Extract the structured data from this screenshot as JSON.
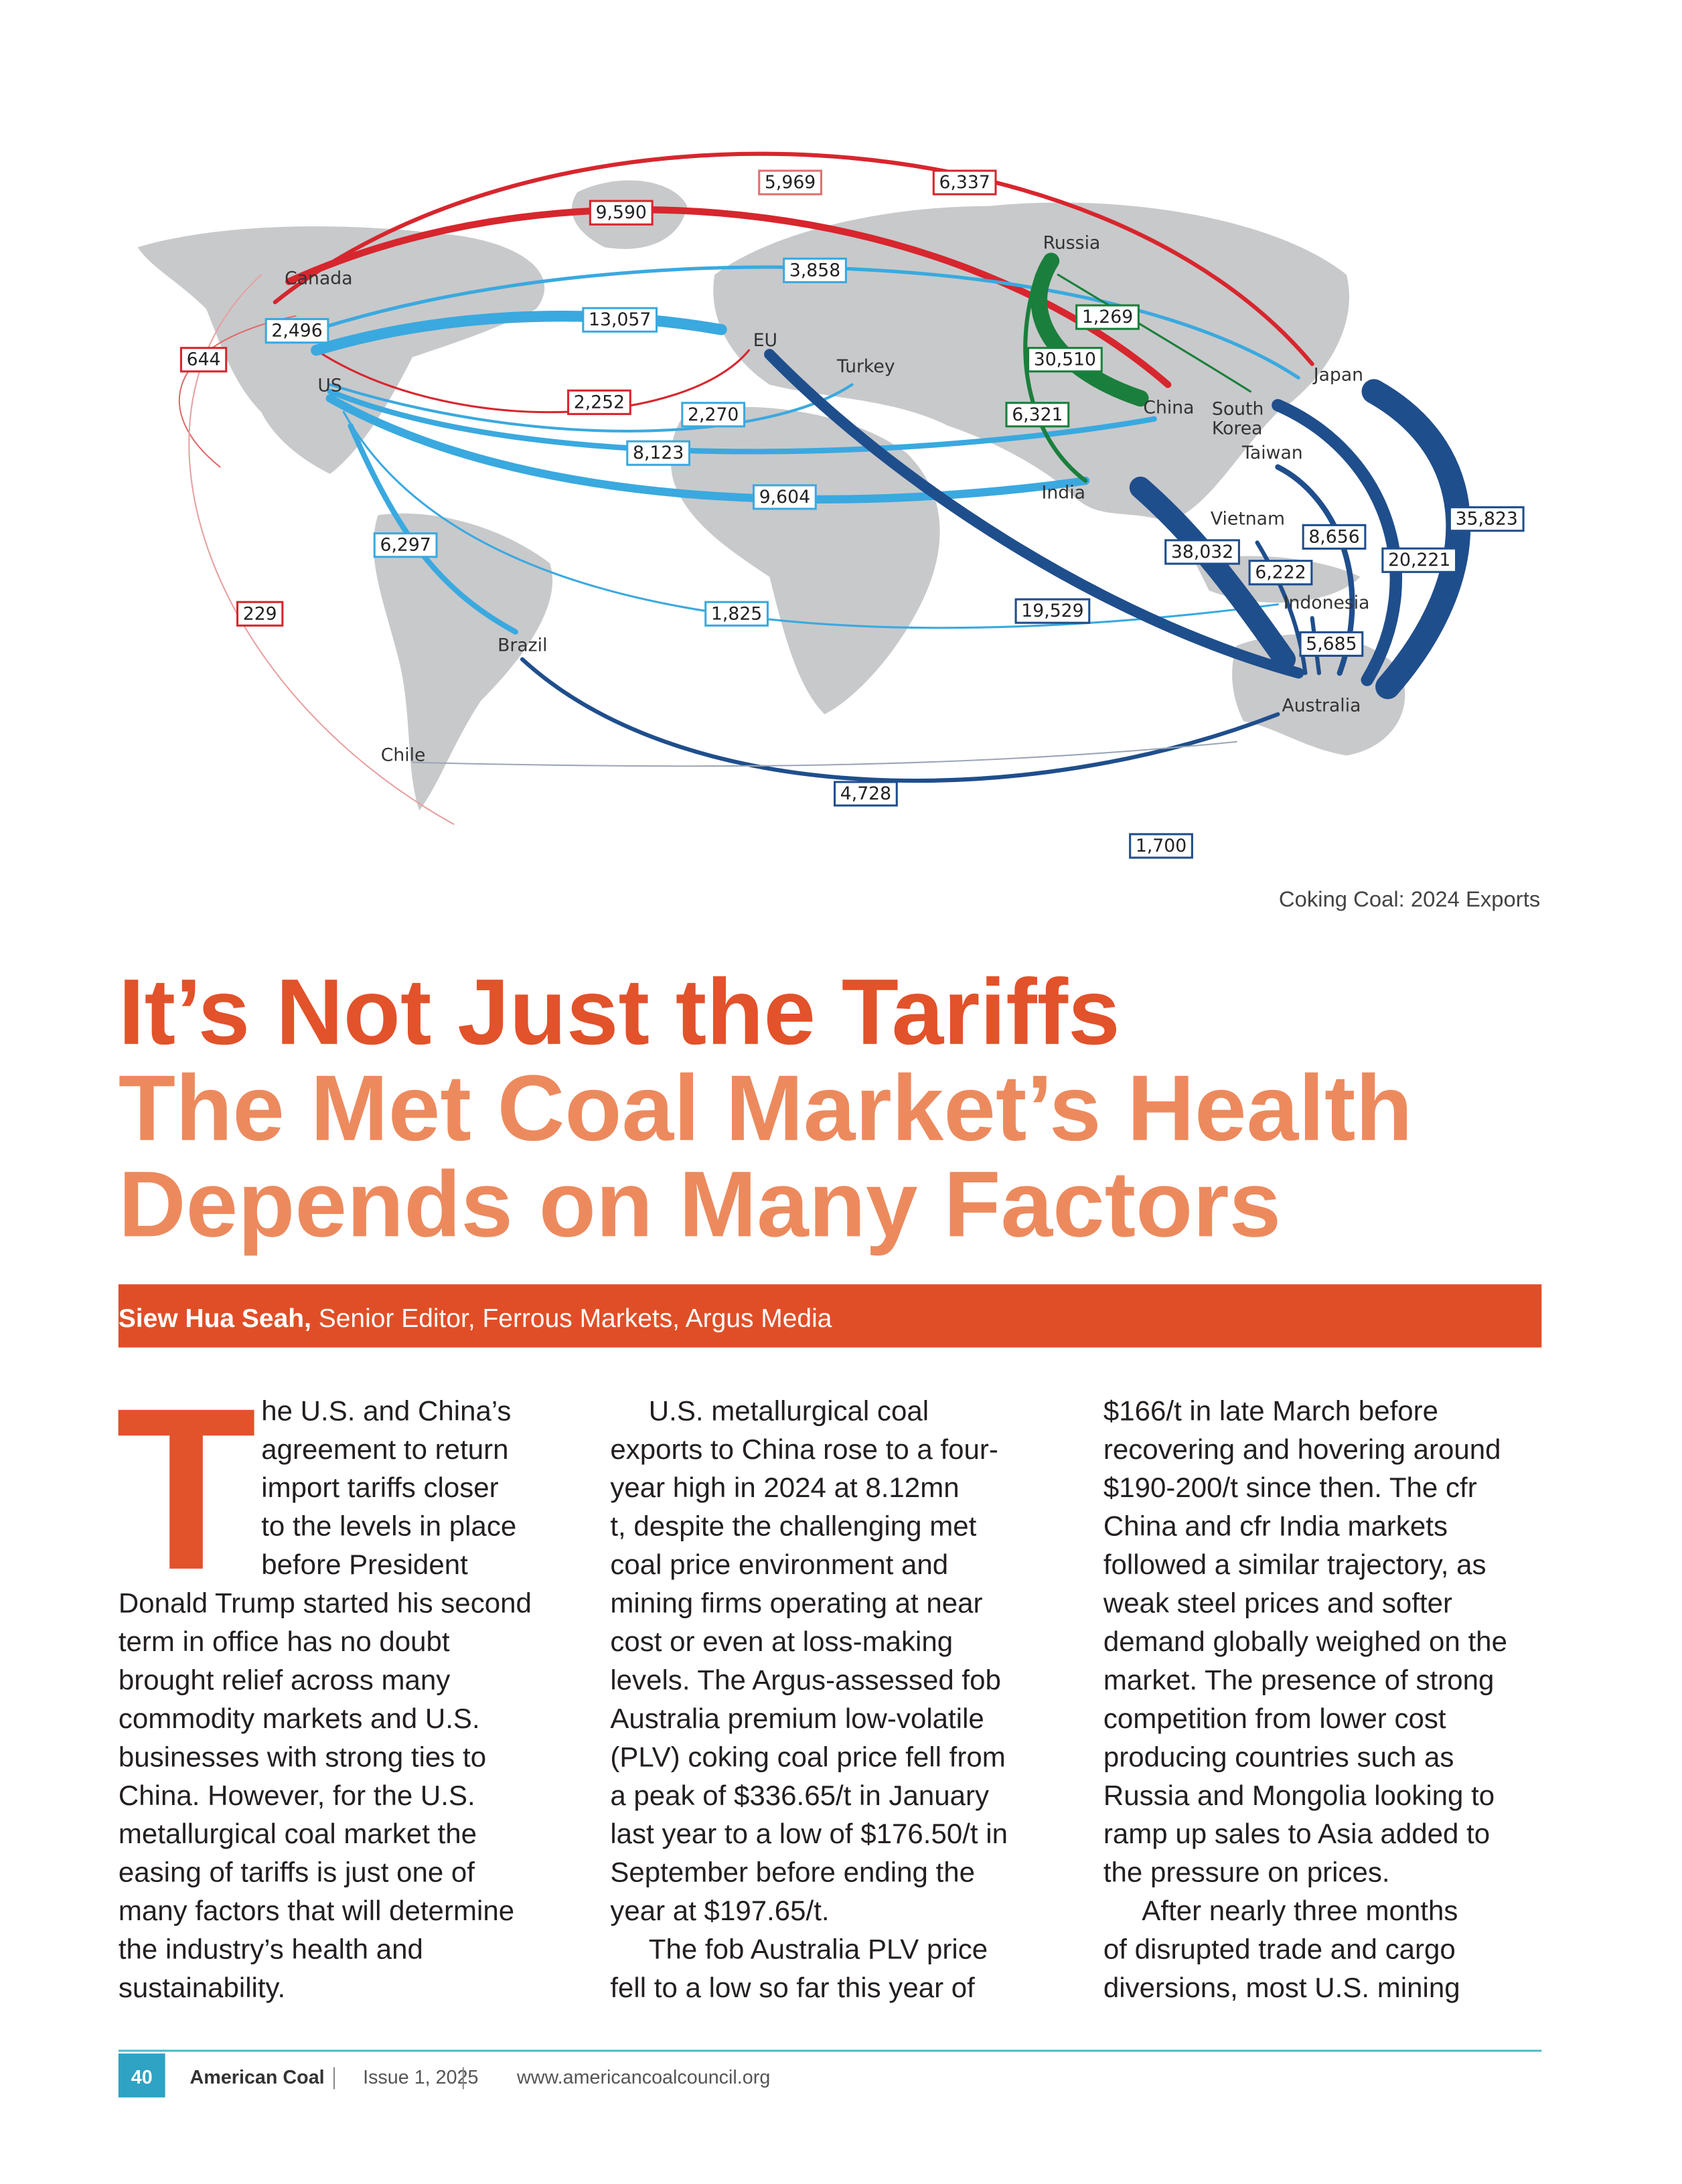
{
  "map": {
    "caption": "Coking Coal: 2024 Exports",
    "countries": [
      "Canada",
      "US",
      "EU",
      "Turkey",
      "Russia",
      "Japan",
      "China",
      [
        "South",
        "Korea"
      ],
      "Taiwan",
      "India",
      "Vietnam",
      "Indonesia",
      "Brazil",
      "Australia",
      "Chile"
    ],
    "flows": [
      {
        "label": "5,969",
        "color": "#e07070"
      },
      {
        "label": "6,337",
        "color": "#d7262e"
      },
      {
        "label": "9,590",
        "color": "#d7262e"
      },
      {
        "label": "3,858",
        "color": "#3aa9df"
      },
      {
        "label": "13,057",
        "color": "#3aa9df"
      },
      {
        "label": "2,496",
        "color": "#3aa9df"
      },
      {
        "label": "644",
        "color": "#d7262e"
      },
      {
        "label": "1,269",
        "color": "#1a7f3c"
      },
      {
        "label": "30,510",
        "color": "#1a7f3c"
      },
      {
        "label": "2,252",
        "color": "#d7262e"
      },
      {
        "label": "2,270",
        "color": "#3aa9df"
      },
      {
        "label": "6,321",
        "color": "#1a7f3c"
      },
      {
        "label": "8,123",
        "color": "#3aa9df"
      },
      {
        "label": "9,604",
        "color": "#3aa9df"
      },
      {
        "label": "6,297",
        "color": "#3aa9df"
      },
      {
        "label": "35,823",
        "color": "#1f4e8c"
      },
      {
        "label": "8,656",
        "color": "#1f4e8c"
      },
      {
        "label": "38,032",
        "color": "#1f4e8c"
      },
      {
        "label": "20,221",
        "color": "#1f4e8c"
      },
      {
        "label": "6,222",
        "color": "#1f4e8c"
      },
      {
        "label": "229",
        "color": "#d7262e"
      },
      {
        "label": "1,825",
        "color": "#3aa9df"
      },
      {
        "label": "19,529",
        "color": "#1f4e8c"
      },
      {
        "label": "5,685",
        "color": "#1f4e8c"
      },
      {
        "label": "4,728",
        "color": "#1f4e8c"
      },
      {
        "label": "1,700",
        "color": "#1f4e8c"
      }
    ]
  },
  "article": {
    "title": "It’s Not Just the Tariffs",
    "subtitle": [
      "The Met Coal Market’s Health",
      "Depends on Many Factors"
    ],
    "author": "Siew Hua Seah,",
    "author_role": "Senior Editor, Ferrous Markets, Argus Media",
    "drop_cap": "T",
    "columns": [
      [
        "he U.S. and China’s",
        "agreement to return",
        "import tariffs closer",
        "to the levels in place",
        "before President",
        "Donald Trump started his second",
        "term in office has no doubt",
        "brought relief across many",
        "commodity markets and U.S.",
        "businesses with strong ties to",
        "China. However, for the U.S.",
        "metallurgical coal market the",
        "easing of tariffs is just one of",
        "many factors that will determine",
        "the industry’s health and",
        "sustainability."
      ],
      [
        "U.S. metallurgical coal",
        "exports to China rose to a four-",
        "year high in 2024 at 8.12mn",
        "t, despite the challenging met",
        "coal price environment and",
        "mining firms operating at near",
        "cost or even at loss-making",
        "levels. The Argus-assessed fob",
        "Australia premium low-volatile",
        "(PLV) coking coal price fell from",
        "a peak of $336.65/t in January",
        "last year to a low of $176.50/t in",
        "September before ending the",
        "year at $197.65/t.",
        "The fob Australia PLV price",
        "fell to a low so far this year of"
      ],
      [
        "$166/t in late March before",
        "recovering and hovering around",
        "$190-200/t since then. The cfr",
        "China and cfr India markets",
        "followed a similar trajectory, as",
        "weak steel prices and softer",
        "demand globally weighed on the",
        "market. The presence of strong",
        "competition from lower cost",
        "producing countries such as",
        "Russia and Mongolia looking to",
        "ramp up sales to Asia added to",
        "the pressure on prices.",
        "After nearly three months",
        "of disrupted trade and cargo",
        "diversions, most U.S. mining"
      ]
    ]
  },
  "footer": {
    "page": "40",
    "publication": "American Coal",
    "issue": "Issue 1, 2025",
    "website": "www.americancoalcouncil.org"
  }
}
